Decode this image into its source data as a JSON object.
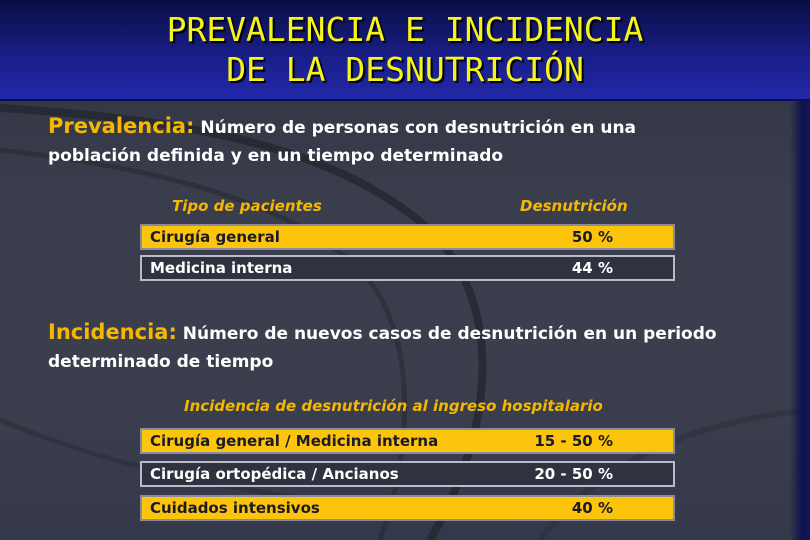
{
  "header": {
    "title_line1": "PREVALENCIA E INCIDENCIA",
    "title_line2": "DE LA DESNUTRICIÓN"
  },
  "prevalencia": {
    "term": "Prevalencia:",
    "definition_line1": "Número de personas con desnutrición  en una",
    "definition_line2": "población definida y en un tiempo determinado",
    "table": {
      "col1_header": "Tipo  de pacientes",
      "col2_header": "Desnutrición",
      "rows": [
        {
          "label": "Cirugía general",
          "value": "50 %"
        },
        {
          "label": "Medicina interna",
          "value": "44 %"
        }
      ]
    }
  },
  "incidencia": {
    "term": "Incidencia:",
    "definition_line1": "Número de nuevos casos de desnutrición en un periodo",
    "definition_line2": "determinado de tiempo",
    "table": {
      "header": "Incidencia de desnutrición al ingreso hospitalario",
      "rows": [
        {
          "label": "Cirugía general / Medicina interna",
          "value": "15 - 50 %"
        },
        {
          "label": "Cirugía ortopédica / Ancianos",
          "value": "20 - 50 %"
        },
        {
          "label": "Cuidados intensivos",
          "value": "40 %"
        }
      ]
    }
  },
  "colors": {
    "title": "#f5f51a",
    "accent": "#f5b800",
    "row_highlight": "#fcc40a",
    "banner": "#1a1f8c"
  }
}
